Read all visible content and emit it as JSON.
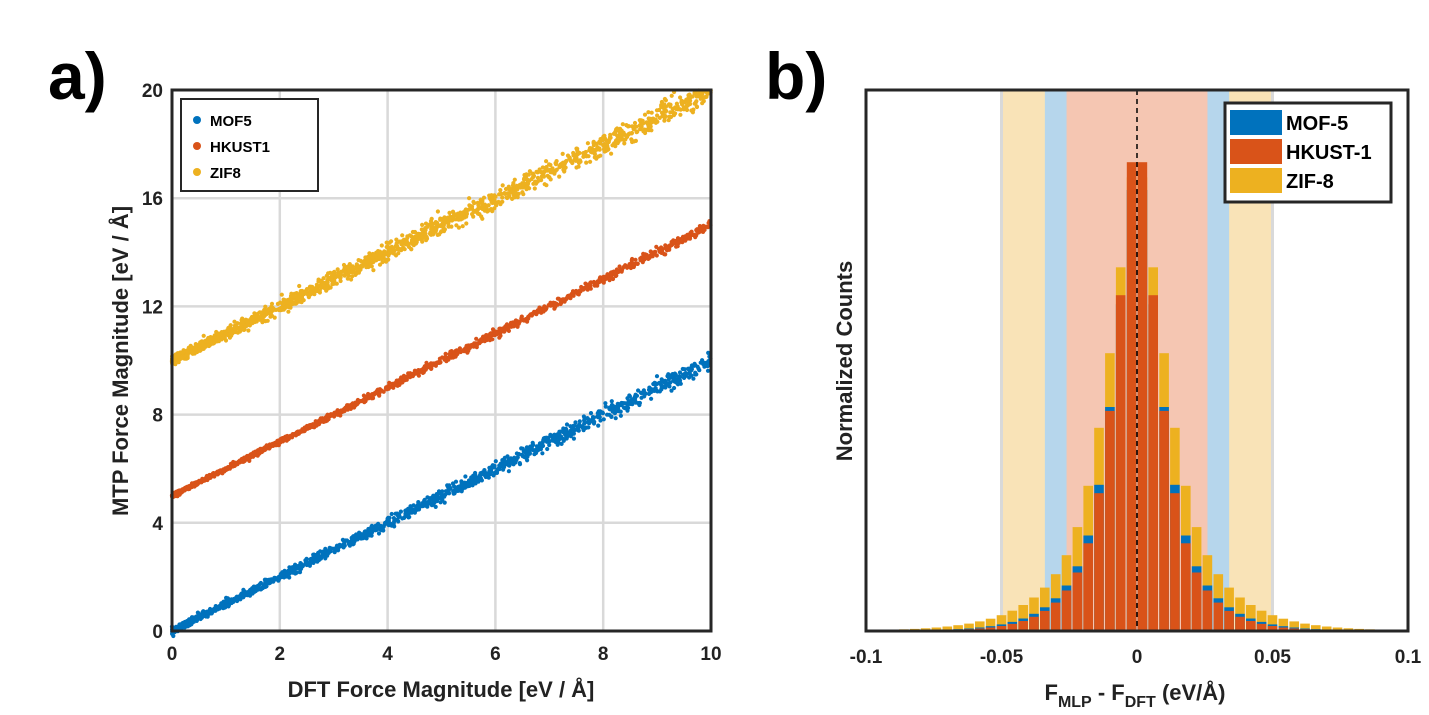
{
  "chart_data": [
    {
      "panel": "a)",
      "type": "scatter",
      "xlabel": "DFT Force Magnitude [eV / Å]",
      "ylabel": "MTP Force Magnitude [eV / Å]",
      "xlim": [
        0,
        10
      ],
      "ylim": [
        0,
        20
      ],
      "xticks": [
        "0",
        "2",
        "4",
        "6",
        "8",
        "10"
      ],
      "yticks": [
        "0",
        "4",
        "8",
        "12",
        "16",
        "20"
      ],
      "grid": true,
      "legend_position": "top-left",
      "series": [
        {
          "name": "MOF5",
          "color": "#0072BD",
          "offset": 0,
          "x_max": 10.0,
          "spread": 0.12,
          "n": 1300
        },
        {
          "name": "HKUST1",
          "color": "#D95319",
          "offset": 5,
          "x_max": 10.0,
          "spread": 0.07,
          "n": 1300
        },
        {
          "name": "ZIF8",
          "color": "#EDB120",
          "offset": 10,
          "x_max": 10.0,
          "spread": 0.18,
          "n": 1500
        }
      ]
    },
    {
      "panel": "b)",
      "type": "bar",
      "xlabel_main": "F",
      "xlabel_sub1": "MLP",
      "xlabel_mid": " - F",
      "xlabel_sub2": "DFT",
      "xlabel_end": " (eV/Å)",
      "ylabel": "Normalized Counts",
      "xlim": [
        -0.1,
        0.1
      ],
      "xticks": [
        "-0.1",
        "-0.05",
        "0",
        "0.05",
        "0.1"
      ],
      "bin_width": 0.004,
      "legend_position": "top-right",
      "bands": [
        {
          "series": "ZIF-8",
          "range": [
            -0.05,
            0.05
          ],
          "color": "#F9E3B7"
        },
        {
          "series": "MOF-5",
          "range": [
            -0.034,
            0.034
          ],
          "color": "#B6D6EC"
        },
        {
          "series": "HKUST-1",
          "range": [
            -0.026,
            0.026
          ],
          "color": "#F5C6B2"
        }
      ],
      "vlines": [
        -0.05,
        0.05
      ],
      "series": [
        {
          "name": "MOF-5",
          "color": "#0072BD",
          "sigma": 0.0125
        },
        {
          "name": "HKUST-1",
          "color": "#D95319",
          "sigma": 0.0115
        },
        {
          "name": "ZIF-8",
          "color": "#EDB120",
          "sigma": 0.016
        }
      ]
    }
  ]
}
